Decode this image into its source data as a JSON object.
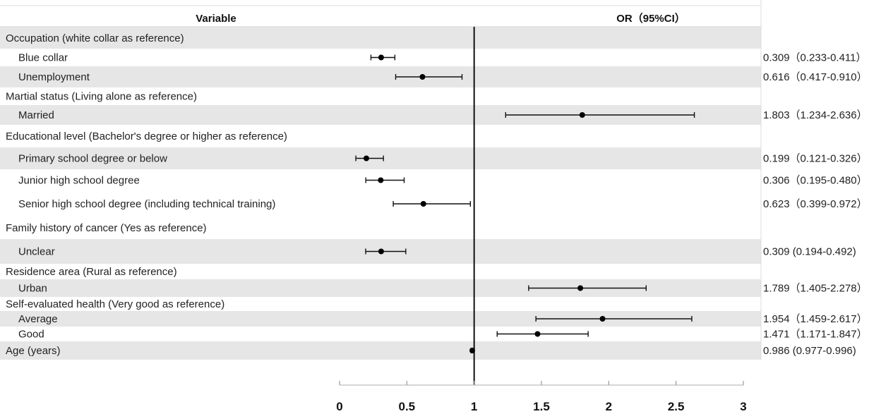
{
  "chart_data": {
    "type": "forest",
    "headers": {
      "variable": "Variable",
      "or": "OR（95%CI）"
    },
    "reference_line": 1,
    "xlim": [
      0,
      3
    ],
    "x_ticks": [
      0,
      0.5,
      1,
      1.5,
      2,
      2.5,
      3
    ],
    "x_tick_labels": [
      "0",
      "0.5",
      "1",
      "1.5",
      "2",
      "2.5",
      "3"
    ],
    "rows": [
      {
        "kind": "group",
        "label": "Occupation (white collar as reference)"
      },
      {
        "kind": "item",
        "label": "Blue collar",
        "or": 0.309,
        "lo": 0.233,
        "hi": 0.411,
        "text": "0.309（0.233-0.411）"
      },
      {
        "kind": "item",
        "label": "Unemployment",
        "or": 0.616,
        "lo": 0.417,
        "hi": 0.91,
        "text": "0.616（0.417-0.910）"
      },
      {
        "kind": "group",
        "label": "Martial status (Living alone as reference)"
      },
      {
        "kind": "item",
        "label": "Married",
        "or": 1.803,
        "lo": 1.234,
        "hi": 2.636,
        "text": "1.803（1.234-2.636）"
      },
      {
        "kind": "group",
        "label": "Educational level (Bachelor's degree or higher as reference)"
      },
      {
        "kind": "item",
        "label": "Primary school degree or below",
        "or": 0.199,
        "lo": 0.121,
        "hi": 0.326,
        "text": "0.199（0.121-0.326）"
      },
      {
        "kind": "item",
        "label": "Junior high school degree",
        "or": 0.306,
        "lo": 0.195,
        "hi": 0.48,
        "text": "0.306（0.195-0.480）"
      },
      {
        "kind": "item",
        "label": "Senior high school degree (including technical training)",
        "or": 0.623,
        "lo": 0.399,
        "hi": 0.972,
        "text": "0.623（0.399-0.972）"
      },
      {
        "kind": "group",
        "label": "Family history of cancer (Yes as reference)"
      },
      {
        "kind": "item",
        "label": "Unclear",
        "or": 0.309,
        "lo": 0.194,
        "hi": 0.492,
        "text": "0.309 (0.194-0.492)"
      },
      {
        "kind": "group",
        "label": "Residence area (Rural as reference)"
      },
      {
        "kind": "item",
        "label": "Urban",
        "or": 1.789,
        "lo": 1.405,
        "hi": 2.278,
        "text": "1.789（1.405-2.278）"
      },
      {
        "kind": "group",
        "label": "Self-evaluated health (Very good as reference)"
      },
      {
        "kind": "item",
        "label": "Average",
        "or": 1.954,
        "lo": 1.459,
        "hi": 2.617,
        "text": "1.954（1.459-2.617）"
      },
      {
        "kind": "item",
        "label": "Good",
        "or": 1.471,
        "lo": 1.171,
        "hi": 1.847,
        "text": "1.471（1.171-1.847）"
      },
      {
        "kind": "group_value",
        "label": "Age (years)",
        "or": 0.986,
        "lo": 0.977,
        "hi": 0.996,
        "text": "0.986 (0.977-0.996)"
      }
    ]
  }
}
